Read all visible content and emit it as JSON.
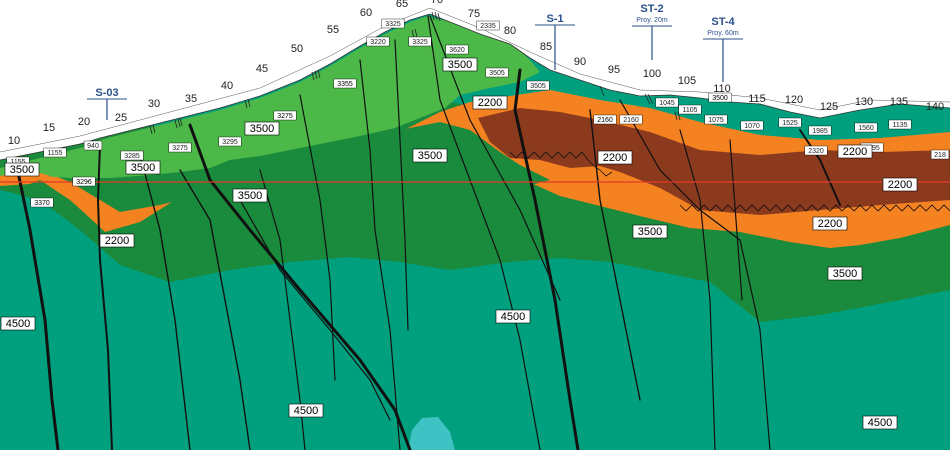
{
  "section": {
    "colors": {
      "deep_4500": "#00a07e",
      "deep_basal": "#3fc2c4",
      "layer_3500_dark": "#1a8a3c",
      "layer_3500_light": "#4cb848",
      "layer_2200": "#f58220",
      "layer_brown": "#8c3a1e",
      "profile_line": "#e23a2a"
    },
    "distances": [
      "10",
      "15",
      "20",
      "25",
      "30",
      "35",
      "40",
      "45",
      "50",
      "55",
      "60",
      "65",
      "70",
      "75",
      "80",
      "85",
      "90",
      "95",
      "100",
      "105",
      "110",
      "115",
      "120",
      "125",
      "130",
      "135",
      "140"
    ],
    "boreholes": [
      {
        "name": "S-03",
        "note": ""
      },
      {
        "name": "S-1",
        "note": ""
      },
      {
        "name": "ST-2",
        "note": "Proy. 20m"
      },
      {
        "name": "ST-4",
        "note": "Proy. 60m"
      }
    ],
    "surface_velocities": [
      "1155",
      "1155",
      "940",
      "3285",
      "3275",
      "3295",
      "3325",
      "3220",
      "3325",
      "3620",
      "2335",
      "3505",
      "3505",
      "2160",
      "1045",
      "1105",
      "1075",
      "1070",
      "1525",
      "1985",
      "1560",
      "1135",
      "2320",
      "2295",
      "218"
    ],
    "velocity_labels": [
      "3500",
      "3500",
      "3500",
      "3500",
      "3500",
      "3500",
      "2200",
      "2200",
      "2200",
      "2200",
      "2200",
      "2200",
      "3500",
      "3500",
      "4500",
      "4500",
      "4500",
      "4500"
    ],
    "small_velocity_labels": [
      "3275",
      "3355",
      "3296",
      "3370",
      "2160",
      "3500"
    ]
  }
}
